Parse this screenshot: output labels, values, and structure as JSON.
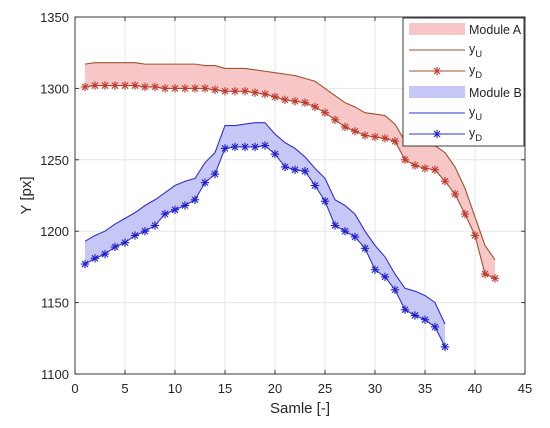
{
  "chart_data": {
    "type": "line",
    "xlabel": "Samle [-]",
    "ylabel": "Y [px]",
    "xlim": [
      0,
      45
    ],
    "ylim": [
      1100,
      1350
    ],
    "x_ticks": [
      0,
      5,
      10,
      15,
      20,
      25,
      30,
      35,
      40,
      45
    ],
    "y_ticks": [
      1100,
      1150,
      1200,
      1250,
      1300,
      1350
    ],
    "x_tick_labels": [
      "0",
      "5",
      "10",
      "15",
      "20",
      "25",
      "30",
      "35",
      "40",
      "45"
    ],
    "y_tick_labels": [
      "1100",
      "1150",
      "1200",
      "1250",
      "1300",
      "1350"
    ],
    "grid": true,
    "legend_position": "top-right",
    "legend": [
      {
        "label": "Module A",
        "kind": "band",
        "group": "A"
      },
      {
        "label_main": "y",
        "label_sub": "U",
        "kind": "line",
        "group": "A"
      },
      {
        "label_main": "y",
        "label_sub": "D",
        "kind": "line-marker",
        "group": "A"
      },
      {
        "label": "Module B",
        "kind": "band",
        "group": "B"
      },
      {
        "label_main": "y",
        "label_sub": "U",
        "kind": "line",
        "group": "B"
      },
      {
        "label_main": "y",
        "label_sub": "D",
        "kind": "line-marker",
        "group": "B"
      }
    ],
    "colors": {
      "A_line": "#a0522d",
      "A_band": "#f7c6c6",
      "A_marker": "#c0392b",
      "B_line": "#3030d0",
      "B_band": "#c7c7f5",
      "B_marker": "#2020c8"
    },
    "series": [
      {
        "group": "A",
        "role": "yU",
        "x": [
          1,
          2,
          3,
          4,
          5,
          6,
          7,
          8,
          9,
          10,
          11,
          12,
          13,
          14,
          15,
          16,
          17,
          18,
          19,
          20,
          21,
          22,
          23,
          24,
          25,
          26,
          27,
          28,
          29,
          30,
          31,
          32,
          33,
          34,
          35,
          36,
          37,
          38,
          39,
          40,
          41,
          42
        ],
        "values": [
          1317,
          1318,
          1318,
          1318,
          1318,
          1318,
          1317,
          1317,
          1317,
          1317,
          1317,
          1317,
          1316,
          1316,
          1314,
          1314,
          1314,
          1313,
          1312,
          1311,
          1310,
          1309,
          1307,
          1305,
          1300,
          1295,
          1290,
          1287,
          1283,
          1282,
          1281,
          1275,
          1263,
          1262,
          1262,
          1260,
          1255,
          1245,
          1230,
          1210,
          1190,
          1180
        ]
      },
      {
        "group": "A",
        "role": "yD",
        "x": [
          1,
          2,
          3,
          4,
          5,
          6,
          7,
          8,
          9,
          10,
          11,
          12,
          13,
          14,
          15,
          16,
          17,
          18,
          19,
          20,
          21,
          22,
          23,
          24,
          25,
          26,
          27,
          28,
          29,
          30,
          31,
          32,
          33,
          34,
          35,
          36,
          37,
          38,
          39,
          40,
          41,
          42
        ],
        "values": [
          1301,
          1302,
          1302,
          1302,
          1302,
          1302,
          1301,
          1301,
          1300,
          1300,
          1300,
          1300,
          1300,
          1299,
          1298,
          1298,
          1298,
          1297,
          1296,
          1294,
          1292,
          1291,
          1290,
          1287,
          1283,
          1278,
          1273,
          1270,
          1267,
          1266,
          1265,
          1263,
          1250,
          1246,
          1244,
          1243,
          1235,
          1226,
          1212,
          1197,
          1170,
          1167
        ]
      },
      {
        "group": "B",
        "role": "yU",
        "x": [
          1,
          2,
          3,
          4,
          5,
          6,
          7,
          8,
          9,
          10,
          11,
          12,
          13,
          14,
          15,
          16,
          17,
          18,
          19,
          20,
          21,
          22,
          23,
          24,
          25,
          26,
          27,
          28,
          29,
          30,
          31,
          32,
          33,
          34,
          35,
          36,
          37
        ],
        "values": [
          1193,
          1197,
          1200,
          1205,
          1209,
          1213,
          1218,
          1222,
          1227,
          1232,
          1235,
          1237,
          1248,
          1255,
          1274,
          1274,
          1275,
          1276,
          1276,
          1268,
          1262,
          1258,
          1252,
          1244,
          1237,
          1222,
          1218,
          1212,
          1200,
          1190,
          1182,
          1170,
          1160,
          1158,
          1155,
          1150,
          1135
        ]
      },
      {
        "group": "B",
        "role": "yD",
        "x": [
          1,
          2,
          3,
          4,
          5,
          6,
          7,
          8,
          9,
          10,
          11,
          12,
          13,
          14,
          15,
          16,
          17,
          18,
          19,
          20,
          21,
          22,
          23,
          24,
          25,
          26,
          27,
          28,
          29,
          30,
          31,
          32,
          33,
          34,
          35,
          36,
          37
        ],
        "values": [
          1177,
          1181,
          1184,
          1189,
          1192,
          1197,
          1200,
          1204,
          1212,
          1215,
          1218,
          1222,
          1234,
          1240,
          1258,
          1259,
          1259,
          1259,
          1260,
          1254,
          1245,
          1243,
          1242,
          1232,
          1221,
          1204,
          1200,
          1196,
          1188,
          1173,
          1168,
          1159,
          1145,
          1141,
          1138,
          1133,
          1119
        ]
      }
    ]
  }
}
